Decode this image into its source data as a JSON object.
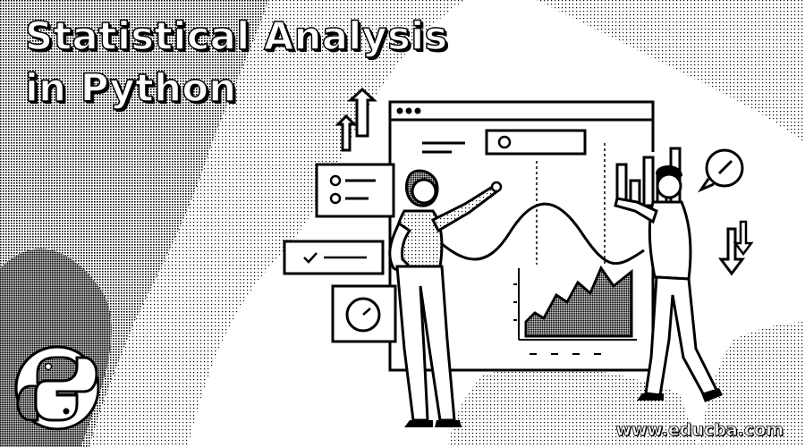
{
  "title": {
    "line1": "Statistical Analysis",
    "line2": "in Python"
  },
  "watermark": {
    "url": "www.educba.com"
  },
  "icons": {
    "logo": "python-logo-icon",
    "compass": "compass-icon",
    "check": "check-icon",
    "arrows": "arrow-icon"
  },
  "colors": {
    "ink": "#000000",
    "paper": "#ffffff",
    "halftone": "#1a1a1a"
  }
}
